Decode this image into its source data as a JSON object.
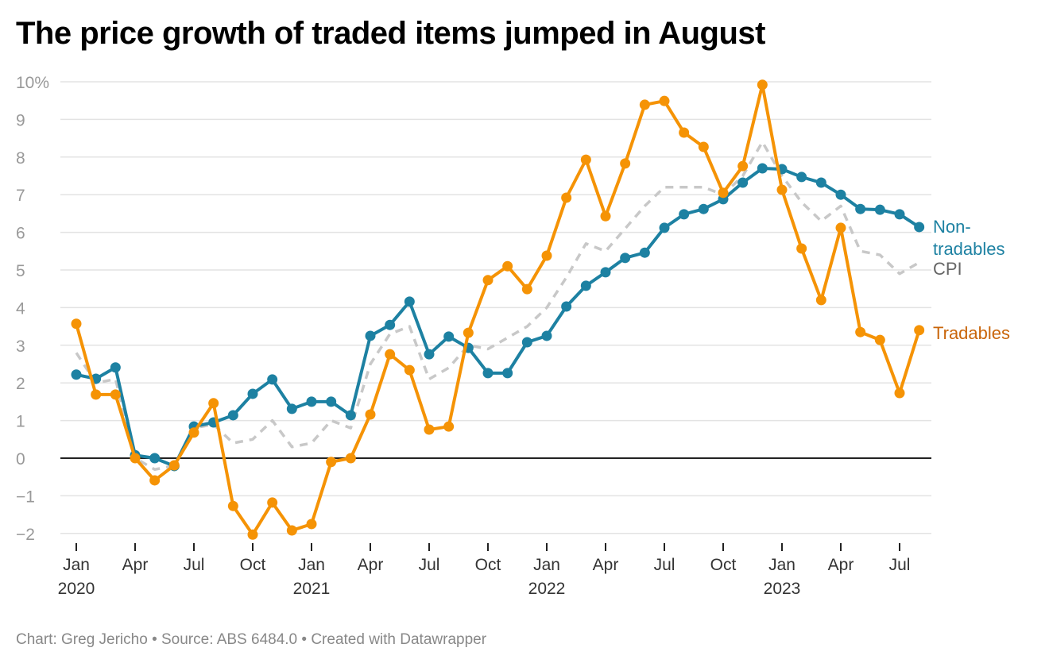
{
  "title": "The price growth of traded items jumped in August",
  "footer": "Chart: Greg Jericho • Source: ABS 6484.0 • Created with Datawrapper",
  "chart_data": {
    "type": "line",
    "title": "The price growth of traded items jumped in August",
    "ylim": [
      -2,
      10
    ],
    "y_ticks": [
      "10%",
      "9",
      "8",
      "7",
      "6",
      "5",
      "4",
      "3",
      "2",
      "1",
      "0",
      "−1",
      "−2"
    ],
    "y_tick_values": [
      10,
      9,
      8,
      7,
      6,
      5,
      4,
      3,
      2,
      1,
      0,
      -1,
      -2
    ],
    "x_range": [
      "2020-01",
      "2023-08"
    ],
    "x_ticks": [
      {
        "month": "2020-01",
        "label": "Jan",
        "year": "2020"
      },
      {
        "month": "2020-04",
        "label": "Apr"
      },
      {
        "month": "2020-07",
        "label": "Jul"
      },
      {
        "month": "2020-10",
        "label": "Oct"
      },
      {
        "month": "2021-01",
        "label": "Jan",
        "year": "2021"
      },
      {
        "month": "2021-04",
        "label": "Apr"
      },
      {
        "month": "2021-07",
        "label": "Jul"
      },
      {
        "month": "2021-10",
        "label": "Oct"
      },
      {
        "month": "2022-01",
        "label": "Jan",
        "year": "2022"
      },
      {
        "month": "2022-04",
        "label": "Apr"
      },
      {
        "month": "2022-07",
        "label": "Jul"
      },
      {
        "month": "2022-10",
        "label": "Oct"
      },
      {
        "month": "2023-01",
        "label": "Jan",
        "year": "2023"
      },
      {
        "month": "2023-04",
        "label": "Apr"
      },
      {
        "month": "2023-07",
        "label": "Jul"
      }
    ],
    "grid": true,
    "legend": "direct labels at right end",
    "series": [
      {
        "name": "CPI",
        "color": "#c8c8c8",
        "style": "dashed",
        "markers": false,
        "label_color": "#666666",
        "values": [
          2.8,
          2.0,
          2.1,
          0.0,
          -0.3,
          -0.2,
          0.8,
          0.9,
          0.4,
          0.5,
          1.0,
          0.3,
          0.4,
          1.0,
          0.8,
          2.5,
          3.3,
          3.5,
          2.1,
          2.4,
          3.0,
          2.9,
          3.2,
          3.5,
          4.0,
          4.8,
          5.7,
          5.5,
          6.1,
          6.7,
          7.2,
          7.2,
          7.2,
          7.0,
          7.5,
          8.4,
          7.5,
          6.8,
          6.3,
          6.7,
          5.5,
          5.4,
          4.9,
          5.2
        ]
      },
      {
        "name": "Non-tradables",
        "label_lines": [
          "Non-",
          "tradables"
        ],
        "color": "#1d81a2",
        "style": "solid",
        "markers": true,
        "label_color": "#1d81a2",
        "values": [
          2.22,
          2.11,
          2.41,
          0.08,
          0.0,
          -0.21,
          0.84,
          0.95,
          1.14,
          1.71,
          2.09,
          1.31,
          1.5,
          1.5,
          1.14,
          3.25,
          3.54,
          4.16,
          2.76,
          3.23,
          2.93,
          2.26,
          2.26,
          3.08,
          3.25,
          4.03,
          4.58,
          4.94,
          5.32,
          5.46,
          6.12,
          6.48,
          6.62,
          6.88,
          7.32,
          7.7,
          7.68,
          7.47,
          7.32,
          7.0,
          6.62,
          6.6,
          6.48,
          6.14
        ]
      },
      {
        "name": "Tradables",
        "color": "#f59305",
        "style": "solid",
        "markers": true,
        "label_color": "#c9650a",
        "values": [
          3.57,
          1.69,
          1.69,
          0.0,
          -0.59,
          -0.19,
          0.68,
          1.46,
          -1.27,
          -2.03,
          -1.18,
          -1.92,
          -1.75,
          -0.1,
          0.0,
          1.16,
          2.76,
          2.34,
          0.76,
          0.84,
          3.33,
          4.73,
          5.1,
          4.49,
          5.38,
          6.92,
          7.93,
          6.43,
          7.83,
          9.39,
          9.49,
          8.65,
          8.27,
          7.05,
          7.76,
          9.92,
          7.13,
          5.57,
          4.2,
          6.12,
          3.35,
          3.14,
          1.73,
          3.4
        ]
      }
    ]
  }
}
